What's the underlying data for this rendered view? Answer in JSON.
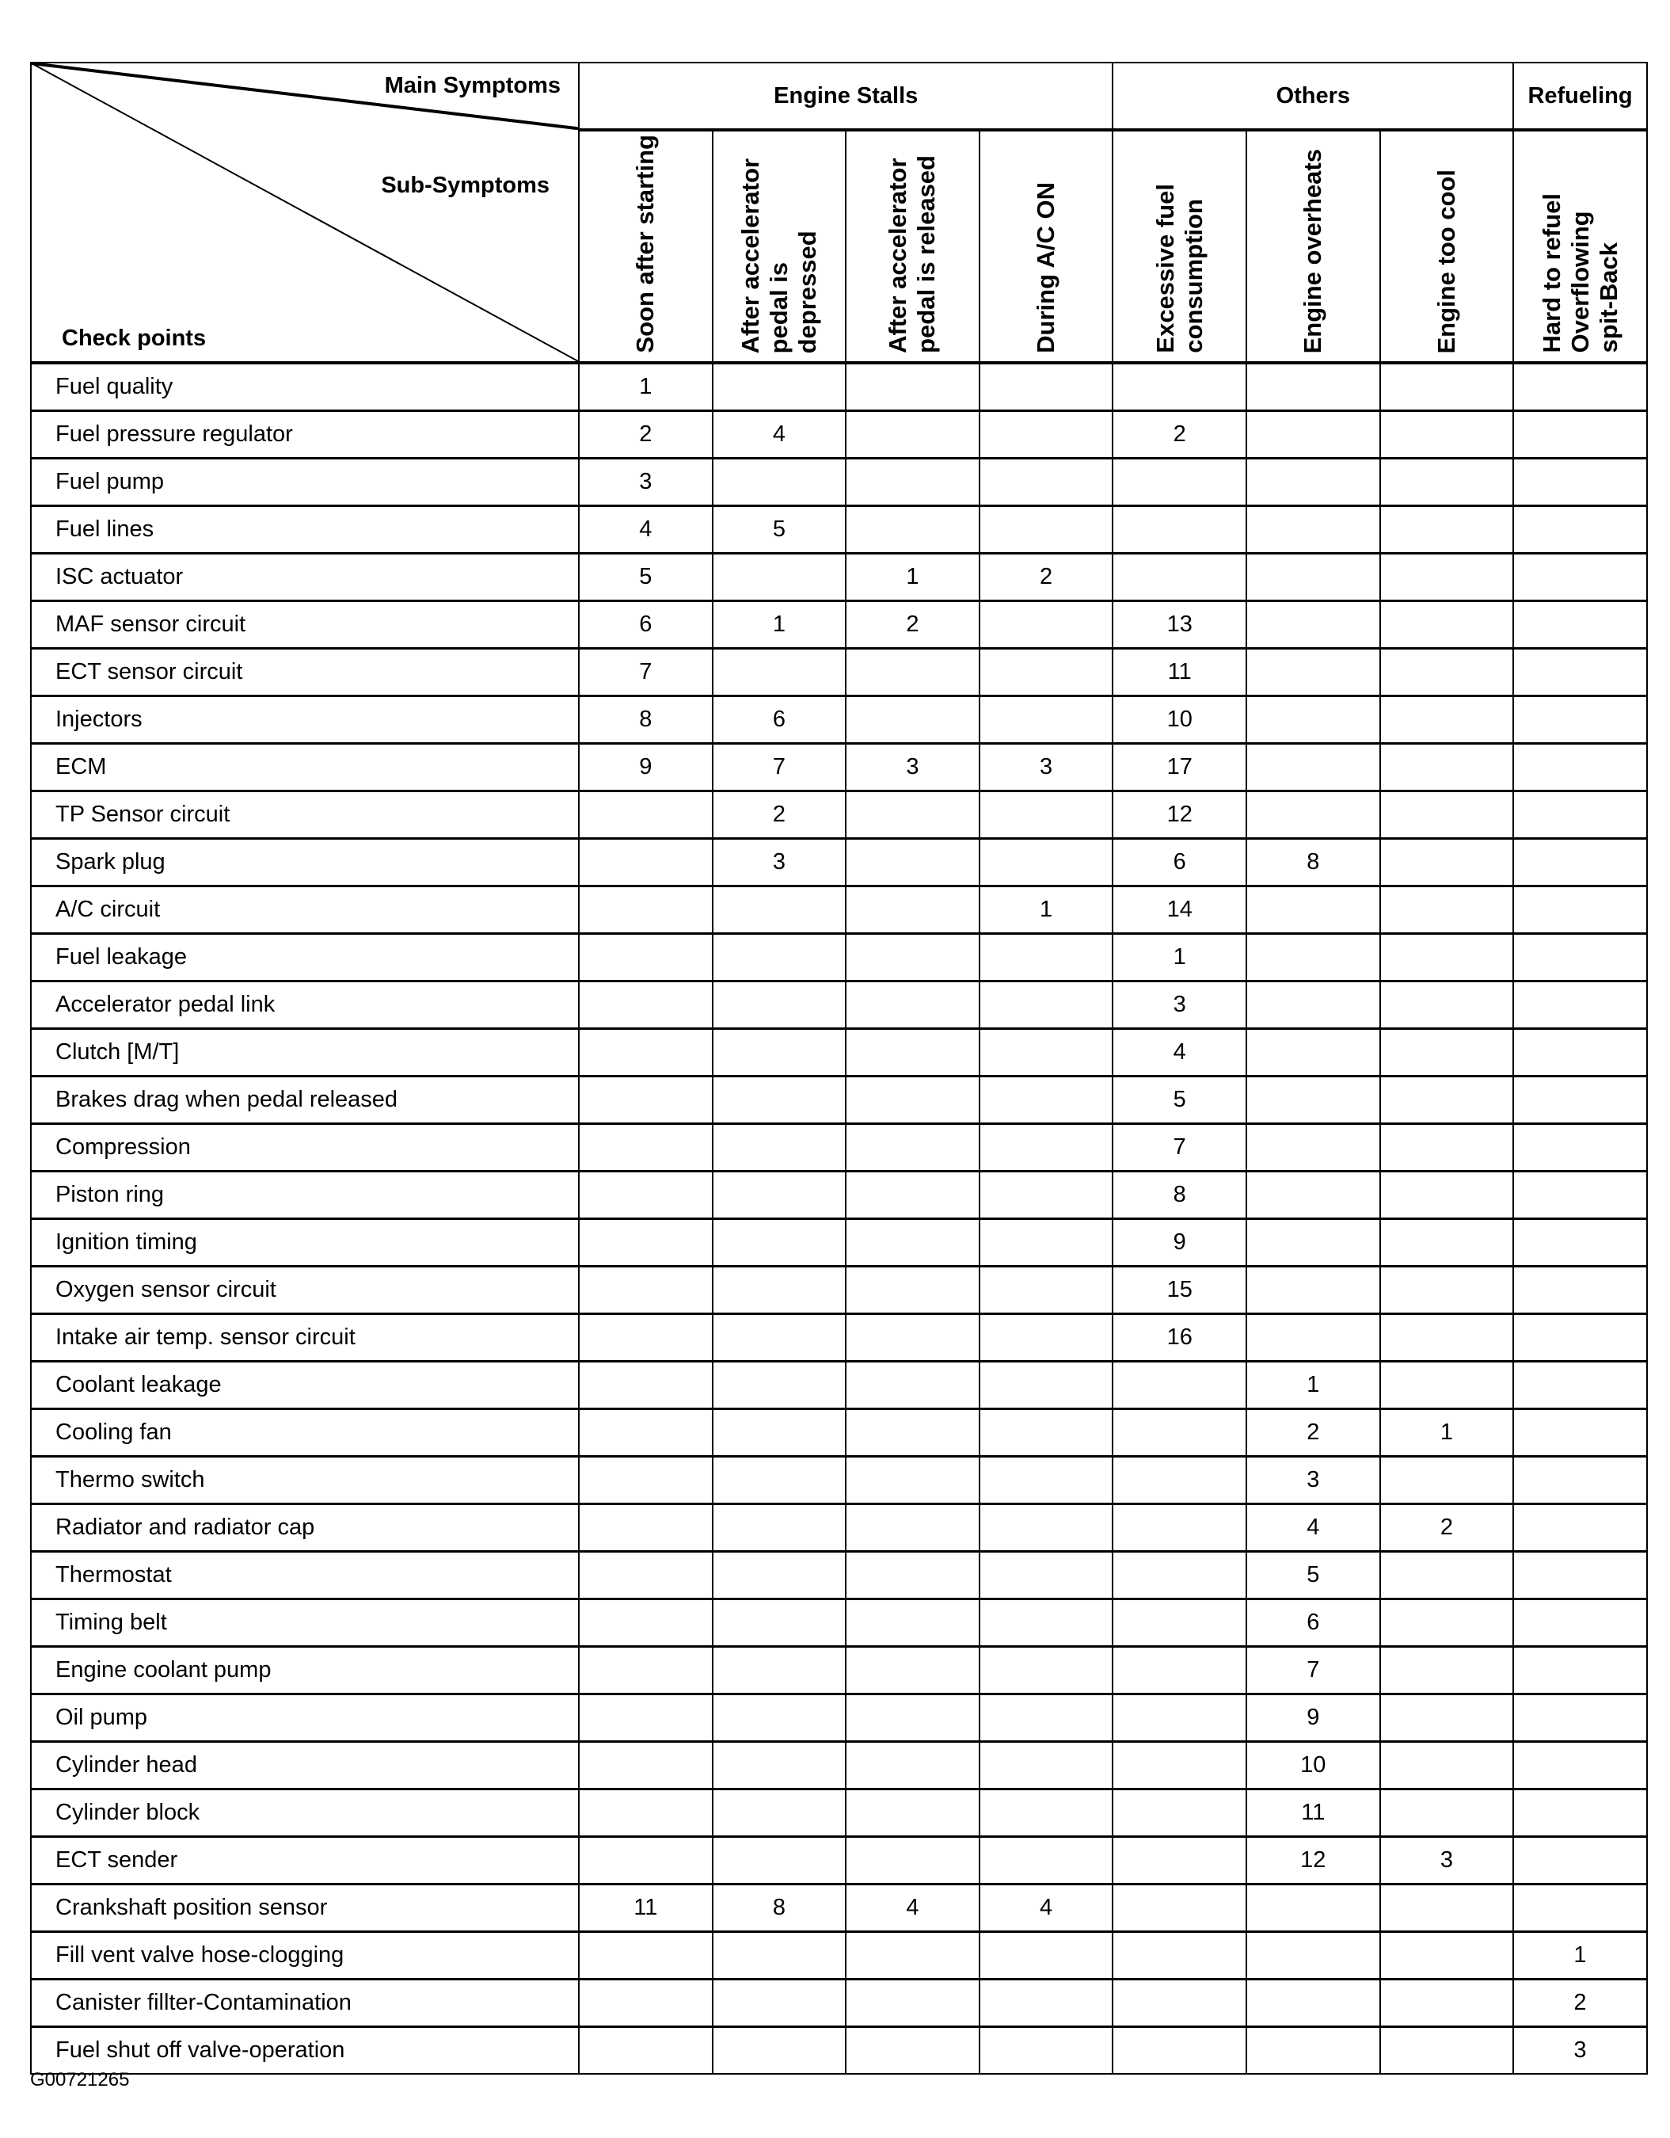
{
  "header": {
    "main_symptoms": "Main Symptoms",
    "sub_symptoms": "Sub-Symptoms",
    "check_points": "Check points",
    "groups": [
      {
        "label": "Engine Stalls",
        "span": 4
      },
      {
        "label": "Others",
        "span": 3
      },
      {
        "label": "Refueling",
        "span": 1
      }
    ],
    "sub": [
      [
        "Soon after starting"
      ],
      [
        "After accelerator",
        "pedal is",
        "depressed"
      ],
      [
        "After accelerator",
        "pedal is released"
      ],
      [
        "During A/C ON"
      ],
      [
        "Excessive fuel",
        "consumption"
      ],
      [
        "Engine overheats"
      ],
      [
        "Engine too cool"
      ],
      [
        "Hard to refuel",
        "Overflowing",
        "spit-Back"
      ]
    ]
  },
  "rows": [
    {
      "name": "Fuel quality",
      "cells": [
        "1",
        "",
        "",
        "",
        "",
        "",
        "",
        ""
      ]
    },
    {
      "name": "Fuel pressure regulator",
      "cells": [
        "2",
        "4",
        "",
        "",
        "2",
        "",
        "",
        ""
      ]
    },
    {
      "name": "Fuel pump",
      "cells": [
        "3",
        "",
        "",
        "",
        "",
        "",
        "",
        ""
      ]
    },
    {
      "name": "Fuel lines",
      "cells": [
        "4",
        "5",
        "",
        "",
        "",
        "",
        "",
        ""
      ]
    },
    {
      "name": "ISC actuator",
      "cells": [
        "5",
        "",
        "1",
        "2",
        "",
        "",
        "",
        ""
      ]
    },
    {
      "name": "MAF sensor circuit",
      "cells": [
        "6",
        "1",
        "2",
        "",
        "13",
        "",
        "",
        ""
      ]
    },
    {
      "name": "ECT sensor circuit",
      "cells": [
        "7",
        "",
        "",
        "",
        "11",
        "",
        "",
        ""
      ]
    },
    {
      "name": "Injectors",
      "cells": [
        "8",
        "6",
        "",
        "",
        "10",
        "",
        "",
        ""
      ]
    },
    {
      "name": "ECM",
      "cells": [
        "9",
        "7",
        "3",
        "3",
        "17",
        "",
        "",
        ""
      ]
    },
    {
      "name": "TP Sensor circuit",
      "cells": [
        "",
        "2",
        "",
        "",
        "12",
        "",
        "",
        ""
      ]
    },
    {
      "name": "Spark plug",
      "cells": [
        "",
        "3",
        "",
        "",
        "6",
        "8",
        "",
        ""
      ]
    },
    {
      "name": "A/C circuit",
      "cells": [
        "",
        "",
        "",
        "1",
        "14",
        "",
        "",
        ""
      ]
    },
    {
      "name": "Fuel leakage",
      "cells": [
        "",
        "",
        "",
        "",
        "1",
        "",
        "",
        ""
      ]
    },
    {
      "name": "Accelerator pedal link",
      "cells": [
        "",
        "",
        "",
        "",
        "3",
        "",
        "",
        ""
      ]
    },
    {
      "name": "Clutch [M/T]",
      "cells": [
        "",
        "",
        "",
        "",
        "4",
        "",
        "",
        ""
      ]
    },
    {
      "name": "Brakes drag when pedal released",
      "cells": [
        "",
        "",
        "",
        "",
        "5",
        "",
        "",
        ""
      ]
    },
    {
      "name": "Compression",
      "cells": [
        "",
        "",
        "",
        "",
        "7",
        "",
        "",
        ""
      ]
    },
    {
      "name": "Piston ring",
      "cells": [
        "",
        "",
        "",
        "",
        "8",
        "",
        "",
        ""
      ]
    },
    {
      "name": "Ignition timing",
      "cells": [
        "",
        "",
        "",
        "",
        "9",
        "",
        "",
        ""
      ]
    },
    {
      "name": "Oxygen sensor circuit",
      "cells": [
        "",
        "",
        "",
        "",
        "15",
        "",
        "",
        ""
      ]
    },
    {
      "name": "Intake air temp. sensor circuit",
      "cells": [
        "",
        "",
        "",
        "",
        "16",
        "",
        "",
        ""
      ]
    },
    {
      "name": "Coolant leakage",
      "cells": [
        "",
        "",
        "",
        "",
        "",
        "1",
        "",
        ""
      ]
    },
    {
      "name": "Cooling fan",
      "cells": [
        "",
        "",
        "",
        "",
        "",
        "2",
        "1",
        ""
      ]
    },
    {
      "name": "Thermo switch",
      "cells": [
        "",
        "",
        "",
        "",
        "",
        "3",
        "",
        ""
      ]
    },
    {
      "name": "Radiator and radiator cap",
      "cells": [
        "",
        "",
        "",
        "",
        "",
        "4",
        "2",
        ""
      ]
    },
    {
      "name": "Thermostat",
      "cells": [
        "",
        "",
        "",
        "",
        "",
        "5",
        "",
        ""
      ]
    },
    {
      "name": "Timing belt",
      "cells": [
        "",
        "",
        "",
        "",
        "",
        "6",
        "",
        ""
      ]
    },
    {
      "name": "Engine coolant pump",
      "cells": [
        "",
        "",
        "",
        "",
        "",
        "7",
        "",
        ""
      ]
    },
    {
      "name": "Oil pump",
      "cells": [
        "",
        "",
        "",
        "",
        "",
        "9",
        "",
        ""
      ]
    },
    {
      "name": "Cylinder head",
      "cells": [
        "",
        "",
        "",
        "",
        "",
        "10",
        "",
        ""
      ]
    },
    {
      "name": "Cylinder block",
      "cells": [
        "",
        "",
        "",
        "",
        "",
        "11",
        "",
        ""
      ]
    },
    {
      "name": "ECT sender",
      "cells": [
        "",
        "",
        "",
        "",
        "",
        "12",
        "3",
        ""
      ]
    },
    {
      "name": "Crankshaft position sensor",
      "cells": [
        "11",
        "8",
        "4",
        "4",
        "",
        "",
        "",
        ""
      ]
    },
    {
      "name": "Fill vent valve hose-clogging",
      "cells": [
        "",
        "",
        "",
        "",
        "",
        "",
        "",
        "1"
      ]
    },
    {
      "name": "Canister fillter-Contamination",
      "cells": [
        "",
        "",
        "",
        "",
        "",
        "",
        "",
        "2"
      ]
    },
    {
      "name": "Fuel shut off valve-operation",
      "cells": [
        "",
        "",
        "",
        "",
        "",
        "",
        "",
        "3"
      ]
    }
  ],
  "footer_code": "G00721265"
}
